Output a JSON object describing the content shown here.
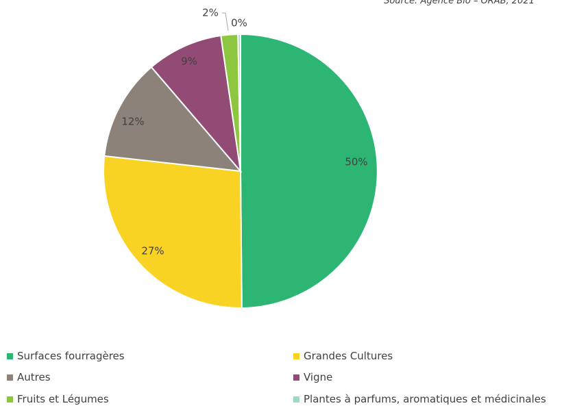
{
  "source": "Source: Agence Bio – ORAB, 2021",
  "chart_data": {
    "type": "pie",
    "categories": [
      "Surfaces fourragères",
      "Grandes Cultures",
      "Autres",
      "Vigne",
      "Fruits et Légumes",
      "Plantes  à parfums, aromatiques et médicinales"
    ],
    "values": [
      50,
      27,
      12,
      9,
      2,
      0.3
    ],
    "value_labels": [
      "50%",
      "27%",
      "12%",
      "9%",
      "2%",
      "0%"
    ],
    "colors": [
      "#2db673",
      "#f9d324",
      "#8c8279",
      "#924b74",
      "#8dc63f",
      "#9fd9c1"
    ],
    "legend_position": "bottom",
    "title": "",
    "xlabel": "",
    "ylabel": ""
  }
}
